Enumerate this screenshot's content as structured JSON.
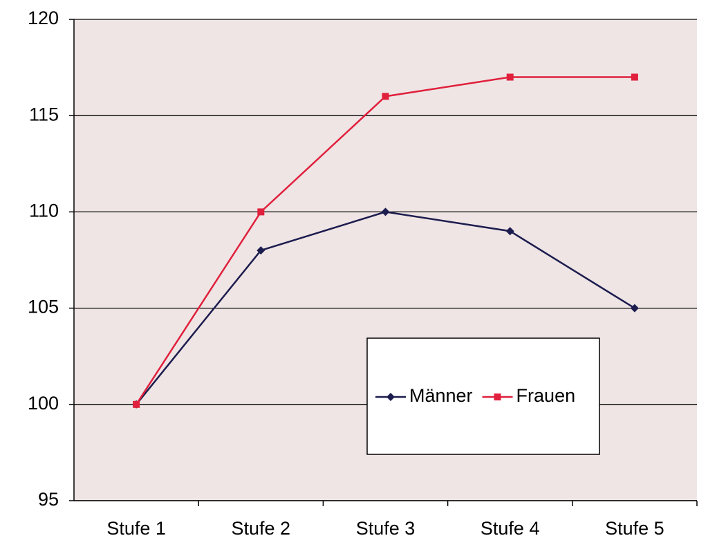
{
  "chart_data": {
    "type": "line",
    "categories": [
      "Stufe 1",
      "Stufe 2",
      "Stufe 3",
      "Stufe 4",
      "Stufe 5"
    ],
    "series": [
      {
        "name": "Männer",
        "color": "#1c1c4e",
        "marker": "diamond",
        "values": [
          100,
          108,
          110,
          109,
          105
        ]
      },
      {
        "name": "Frauen",
        "color": "#e0203c",
        "marker": "square",
        "values": [
          100,
          110,
          116,
          117,
          117
        ]
      }
    ],
    "ylim": [
      95,
      120
    ],
    "yticks": [
      95,
      100,
      105,
      110,
      115,
      120
    ],
    "grid": true
  }
}
